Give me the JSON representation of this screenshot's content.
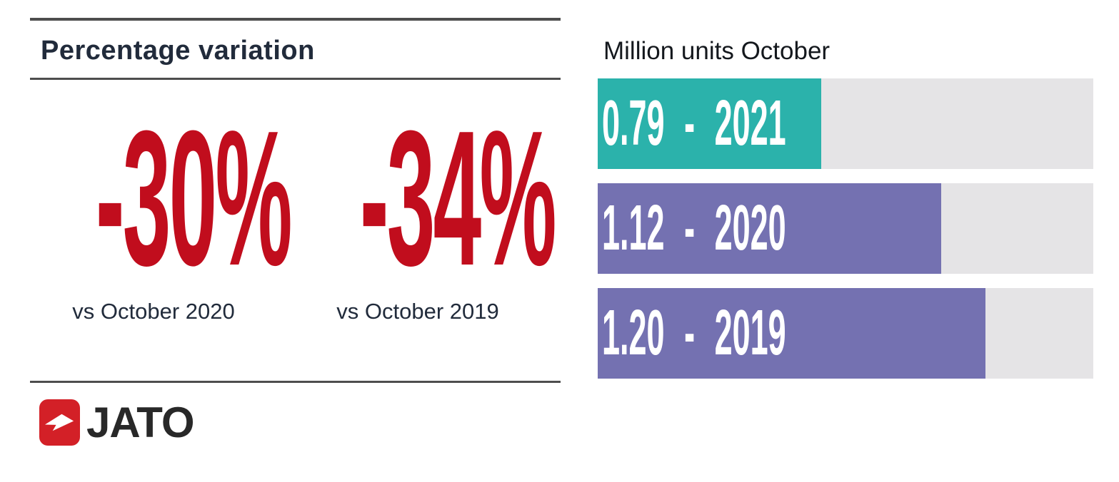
{
  "percentage_panel": {
    "title": "Percentage variation",
    "items": [
      {
        "value": "-30%",
        "caption": "vs October 2020"
      },
      {
        "value": "-34%",
        "caption": "vs October 2019"
      }
    ]
  },
  "units_panel": {
    "title": "Million units October"
  },
  "chart_data": {
    "type": "bar",
    "orientation": "horizontal",
    "title": "Million units October",
    "categories": [
      "2021",
      "2020",
      "2019"
    ],
    "values": [
      0.79,
      1.12,
      1.2
    ],
    "unit": "million units",
    "bars": [
      {
        "label": "0.79 - 2021",
        "value": 0.79,
        "year": "2021",
        "color": "#2bb2ab",
        "width_pct": 45.1
      },
      {
        "label": "1.12 - 2020",
        "value": 1.12,
        "year": "2020",
        "color": "#7471b1",
        "width_pct": 69.3
      },
      {
        "label": "1.20 - 2019",
        "value": 1.2,
        "year": "2019",
        "color": "#7471b1",
        "width_pct": 78.2
      }
    ],
    "track_color": "#e5e4e6",
    "xlim": [
      0,
      1.72
    ],
    "grid": false,
    "legend": null
  },
  "logo": {
    "brand": "JATO"
  },
  "colors": {
    "accent_red": "#c10d1d",
    "logo_red": "#d32027",
    "navy": "#212b3b",
    "teal": "#2bb2ab",
    "purple": "#7471b1",
    "track_gray": "#e5e4e6",
    "line_gray": "#4d4d4d",
    "ink": "#14181d"
  }
}
